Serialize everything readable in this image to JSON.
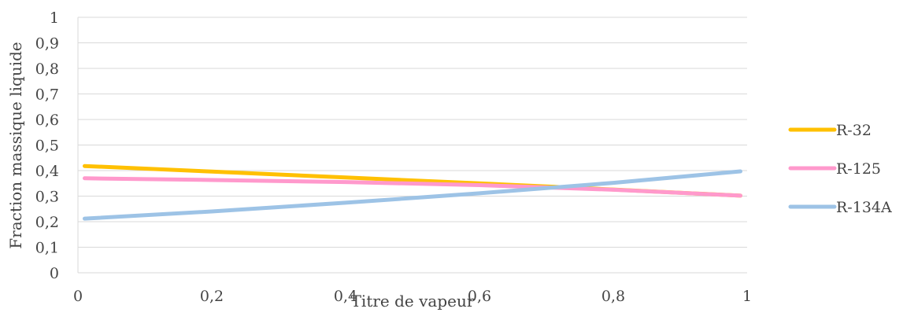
{
  "chart_data": {
    "type": "line",
    "title": "",
    "xlabel": "Titre de vapeur",
    "ylabel": "Fraction massique liquide",
    "xlim": [
      0,
      1
    ],
    "ylim": [
      0,
      1
    ],
    "grid": true,
    "legend_position": "right",
    "x_ticks": [
      "0",
      "0,2",
      "0,4",
      "0,6",
      "0,8",
      "1"
    ],
    "y_ticks": [
      "0",
      "0,1",
      "0,2",
      "0,3",
      "0,4",
      "0,5",
      "0,6",
      "0,7",
      "0,8",
      "0,9",
      "1"
    ],
    "series": [
      {
        "name": "R-32",
        "color": "#FFC000",
        "x": [
          0.01,
          0.2,
          0.4,
          0.6,
          0.8,
          0.99
        ],
        "y": [
          0.418,
          0.396,
          0.373,
          0.35,
          0.326,
          0.302
        ]
      },
      {
        "name": "R-125",
        "color": "#FF99CC",
        "x": [
          0.01,
          0.2,
          0.4,
          0.6,
          0.8,
          0.99
        ],
        "y": [
          0.37,
          0.363,
          0.355,
          0.343,
          0.325,
          0.302
        ]
      },
      {
        "name": "R-134A",
        "color": "#9DC3E6",
        "x": [
          0.01,
          0.2,
          0.4,
          0.6,
          0.8,
          0.99
        ],
        "y": [
          0.212,
          0.24,
          0.274,
          0.311,
          0.352,
          0.397
        ]
      }
    ]
  }
}
